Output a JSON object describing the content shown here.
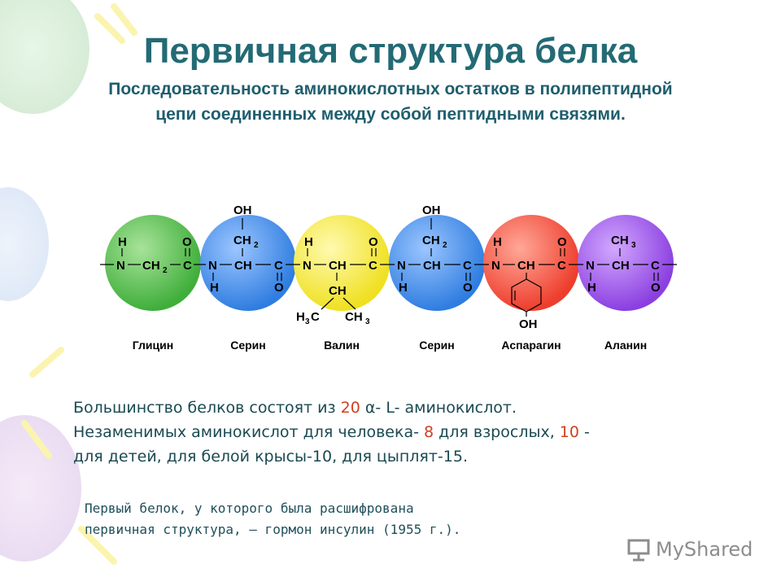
{
  "title": "Первичная структура белка",
  "subtitle": "Последовательность аминокислотных остатков в полипептидной цепи соединенных между собой пептидными связями.",
  "residues": [
    {
      "name": "Глицин",
      "color": "#3fae3a"
    },
    {
      "name": "Серин",
      "color": "#2f7de0"
    },
    {
      "name": "Валин",
      "color": "#f1e62a"
    },
    {
      "name": "Серин",
      "color": "#2f7de0"
    },
    {
      "name": "Аспарагин",
      "color": "#ee3d2c"
    },
    {
      "name": "Аланин",
      "color": "#8b3fe0"
    }
  ],
  "atoms": {
    "H": "H",
    "O": "O",
    "N": "N",
    "C": "C",
    "CH": "CH",
    "CH2": "CH",
    "CH3": "CH",
    "OH": "OH",
    "H3C": "H",
    "three": "3",
    "two": "2",
    "C_after": "C"
  },
  "para1": {
    "a": "Большинство белков состоят из ",
    "n20": "20",
    "b": " α- L- аминокислот.",
    "c": "Незаменимых аминокислот для человека- ",
    "n8": "8",
    "d": "  для взрослых, ",
    "n10": "10",
    "e": " -",
    "f": "для детей, для белой крысы-10, для цыплят-15."
  },
  "para2": {
    "line1": "Первый белок, у которого была расшифрована",
    "line2": "первичная структура, — гормон инсулин (1955 г.)."
  },
  "logo": {
    "text": "MyShared"
  }
}
